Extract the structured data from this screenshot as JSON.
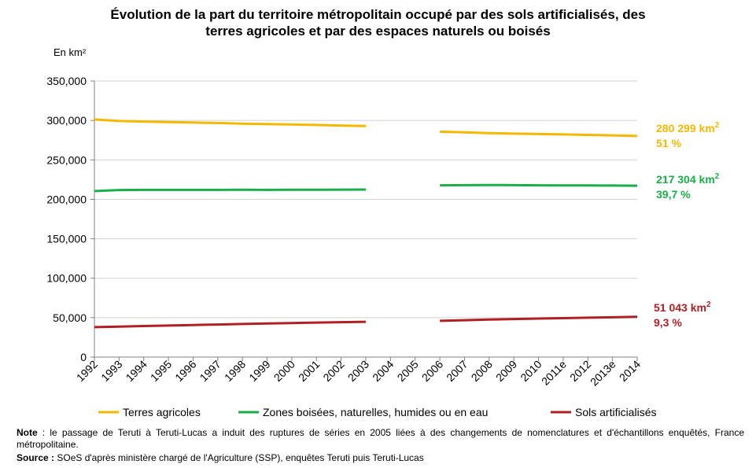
{
  "chart_data": {
    "type": "line",
    "title_line1": "Évolution de la part du territoire métropolitain occupé par des sols artificialisés, des",
    "title_line2": "terres agricoles et par des espaces naturels ou boisés",
    "ylabel": "En km²",
    "ylim": [
      0,
      350000
    ],
    "yticks": [
      "0",
      "50,000",
      "100,000",
      "150,000",
      "200,000",
      "250,000",
      "300,000",
      "350,000"
    ],
    "ytick_values": [
      0,
      50000,
      100000,
      150000,
      200000,
      250000,
      300000,
      350000
    ],
    "categories": [
      "1992",
      "1993",
      "1994",
      "1995",
      "1996",
      "1997",
      "1998",
      "1999",
      "2000",
      "2001",
      "2002",
      "2003",
      "2004",
      "2005",
      "2006",
      "2007",
      "2008",
      "2009",
      "2010",
      "2011e",
      "2012",
      "2013e",
      "2014"
    ],
    "grid": true,
    "legend_position": "bottom",
    "series": [
      {
        "name": "Terres agricoles",
        "color": "#F5B800",
        "values": [
          301200,
          299300,
          298500,
          297900,
          297400,
          296800,
          296000,
          295400,
          294900,
          294300,
          293600,
          292900,
          null,
          null,
          285800,
          285000,
          284000,
          283300,
          282800,
          282300,
          281700,
          281100,
          280299
        ],
        "end_label_value": "280 299 km",
        "end_label_pct": "51 %"
      },
      {
        "name": "Zones boisées, naturelles, humides ou en eau",
        "color": "#1AAE4A",
        "values": [
          210500,
          211800,
          212000,
          212000,
          212000,
          212000,
          212200,
          212000,
          212100,
          212200,
          212300,
          212400,
          null,
          null,
          217800,
          218000,
          218200,
          218000,
          217800,
          217700,
          217600,
          217450,
          217304
        ],
        "end_label_value": "217 304 km",
        "end_label_pct": "39,7 %"
      },
      {
        "name": "Sols artificialisés",
        "color": "#B01F24",
        "values": [
          38000,
          38700,
          39400,
          40000,
          40700,
          41300,
          42000,
          42600,
          43200,
          43800,
          44300,
          44800,
          null,
          null,
          46000,
          46800,
          47600,
          48300,
          48900,
          49400,
          50000,
          50500,
          51043
        ],
        "end_label_value": "51 043 km",
        "end_label_pct": "9,3 %"
      }
    ]
  },
  "footer": {
    "note_label": "Note",
    "note_text": " : le passage de Teruti à Teruti-Lucas a induit des ruptures de séries en 2005 liées à des changements de nomenclatures et d'échantillons enquêtés, France métropolitaine.",
    "source_label": "Source :",
    "source_text": " SOeS d'après ministère chargé de l'Agriculture (SSP), enquêtes Teruti puis Teruti-Lucas"
  }
}
